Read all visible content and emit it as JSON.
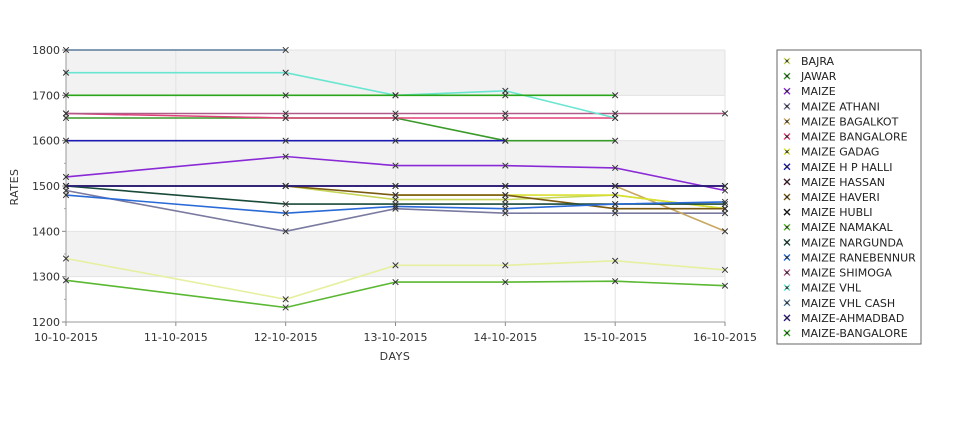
{
  "chart_data": {
    "type": "line",
    "title": "",
    "xlabel": "DAYS",
    "ylabel": "RATES",
    "x": [
      "10-10-2015",
      "11-10-2015",
      "12-10-2015",
      "13-10-2015",
      "14-10-2015",
      "15-10-2015",
      "16-10-2015"
    ],
    "ylim": [
      1200,
      1800
    ],
    "yticks": [
      1200,
      1300,
      1400,
      1500,
      1600,
      1700,
      1800
    ],
    "grid": true,
    "legend_position": "right",
    "series": [
      {
        "name": "BAJRA",
        "color": "#c8d65a",
        "values": [
          1500,
          null,
          1500,
          1470,
          1470,
          1480,
          1450
        ]
      },
      {
        "name": "JAWAR",
        "color": "#3a9a2a",
        "values": [
          1650,
          null,
          1650,
          1650,
          1600,
          1600,
          null
        ]
      },
      {
        "name": "MAIZE",
        "color": "#8a2ad6",
        "values": [
          1520,
          null,
          1565,
          1545,
          1545,
          1540,
          1490
        ]
      },
      {
        "name": "MAIZE ATHANI",
        "color": "#7a7aa0",
        "values": [
          1490,
          null,
          1400,
          1450,
          1440,
          1440,
          1440
        ]
      },
      {
        "name": "MAIZE BAGALKOT",
        "color": "#c8a860",
        "values": [
          null,
          null,
          null,
          null,
          null,
          1500,
          1400
        ]
      },
      {
        "name": "MAIZE BANGALORE",
        "color": "#e0407a",
        "values": [
          1660,
          null,
          1650,
          1650,
          1650,
          1650,
          null
        ]
      },
      {
        "name": "MAIZE GADAG",
        "color": "#d8e030",
        "values": [
          null,
          null,
          null,
          1480,
          1480,
          1480,
          1450
        ]
      },
      {
        "name": "MAIZE H P HALLI",
        "color": "#1a1ab0",
        "values": [
          1600,
          null,
          1600,
          1600,
          1600,
          null,
          null
        ]
      },
      {
        "name": "MAIZE HASSAN",
        "color": "#4a1a2a",
        "values": [
          1500,
          null,
          1500,
          1500,
          1500,
          1500,
          1500
        ]
      },
      {
        "name": "MAIZE HAVERI",
        "color": "#7a5a10",
        "values": [
          null,
          null,
          1500,
          1480,
          1480,
          1450,
          1450
        ]
      },
      {
        "name": "MAIZE HUBLI",
        "color": "#111111",
        "values": [
          1500,
          null,
          1500,
          1500,
          1500,
          1500,
          1500
        ]
      },
      {
        "name": "MAIZE NAMAKAL",
        "color": "#5ab832",
        "values": [
          1292,
          null,
          1232,
          1288,
          1288,
          1290,
          1280
        ]
      },
      {
        "name": "MAIZE NARGUNDA",
        "color": "#1a4a3a",
        "values": [
          1500,
          null,
          1460,
          1460,
          1460,
          1460,
          1460
        ]
      },
      {
        "name": "MAIZE RANEBENNUR",
        "color": "#2a6ad6",
        "values": [
          1480,
          null,
          1440,
          1455,
          1450,
          1460,
          1465
        ]
      },
      {
        "name": "MAIZE SHIMOGA",
        "color": "#b05a8a",
        "values": [
          1660,
          null,
          1660,
          1660,
          1660,
          1660,
          1660
        ]
      },
      {
        "name": "MAIZE VHL",
        "color": "#6ae6d0",
        "values": [
          1750,
          null,
          1750,
          1700,
          1710,
          1650,
          null
        ]
      },
      {
        "name": "MAIZE VHL CASH",
        "color": "#5a7a9a",
        "values": [
          1800,
          null,
          1800,
          null,
          null,
          null,
          null
        ]
      },
      {
        "name": "MAIZE-AHMADBAD",
        "color": "#2a1a8a",
        "values": [
          1500,
          null,
          1500,
          1500,
          1500,
          1500,
          1500
        ]
      },
      {
        "name": "MAIZE-BANGALORE",
        "color": "#2aa61a",
        "values": [
          1700,
          null,
          1700,
          1700,
          1700,
          1700,
          null
        ]
      },
      {
        "name": "",
        "color": "#e6f0a0",
        "values": [
          1340,
          null,
          1250,
          1325,
          1325,
          1335,
          1315
        ]
      }
    ]
  }
}
